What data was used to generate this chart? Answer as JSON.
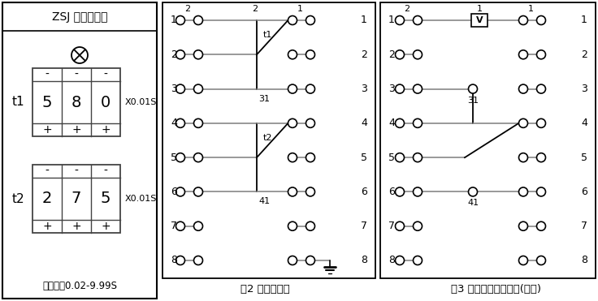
{
  "title_panel": "ZSJ 时间继电器",
  "subtitle_panel": "整定范围0.02-9.99S",
  "t1_label": "t1",
  "t2_label": "t2",
  "t1_digits": [
    "5",
    "8",
    "0"
  ],
  "t2_digits": [
    "2",
    "7",
    "5"
  ],
  "unit_label": "X0.01S",
  "fig2_caption": "图2 面板示意图",
  "fig3_caption": "图3 继电器端子接线图(背视)",
  "bg_color": "#ffffff",
  "border_color": "#000000",
  "line_color": "#888888",
  "dark_color": "#222222"
}
